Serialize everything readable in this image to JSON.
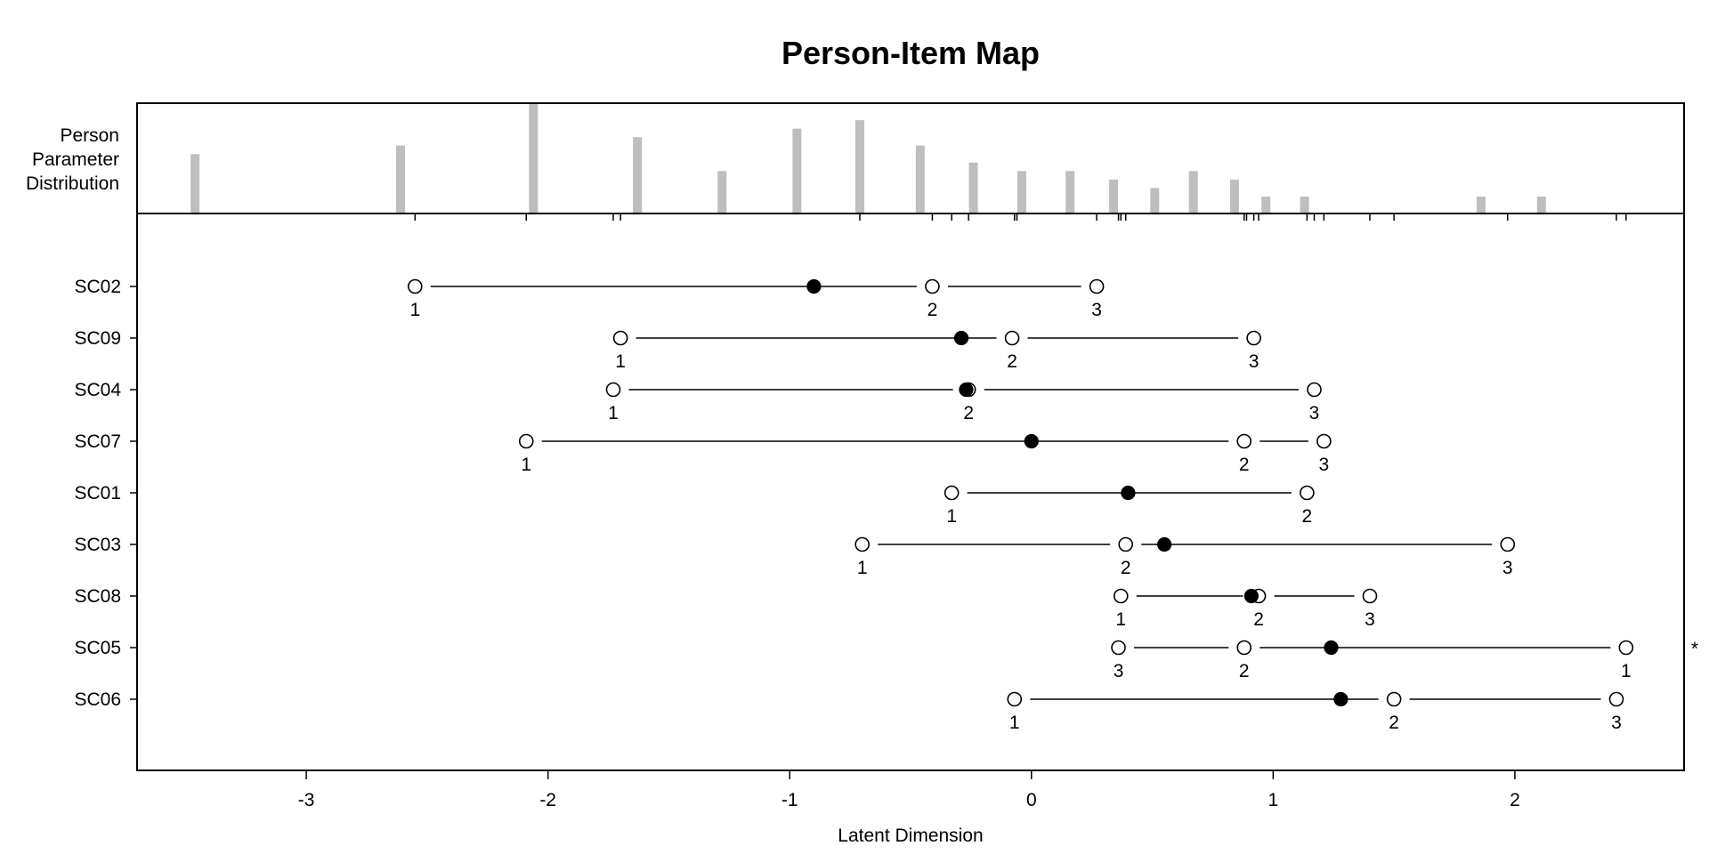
{
  "chart_data": {
    "type": "person-item map",
    "title": "Person-Item Map",
    "xlabel": "Latent Dimension",
    "xlim": [
      -3.7,
      2.7
    ],
    "x_ticks": [
      -3,
      -2,
      -1,
      0,
      1,
      2
    ],
    "x_tick_labels": [
      "-3",
      "-2",
      "-1",
      "0",
      "1",
      "2"
    ],
    "person_panel_label": [
      "Person",
      "Parameter",
      "Distribution"
    ],
    "person_distribution": [
      {
        "x": -3.46,
        "count": 7
      },
      {
        "x": -2.61,
        "count": 8
      },
      {
        "x": -2.06,
        "count": 13
      },
      {
        "x": -1.63,
        "count": 9
      },
      {
        "x": -1.28,
        "count": 5
      },
      {
        "x": -0.97,
        "count": 10
      },
      {
        "x": -0.71,
        "count": 11
      },
      {
        "x": -0.46,
        "count": 8
      },
      {
        "x": -0.24,
        "count": 6
      },
      {
        "x": -0.04,
        "count": 5
      },
      {
        "x": 0.16,
        "count": 5
      },
      {
        "x": 0.34,
        "count": 4
      },
      {
        "x": 0.51,
        "count": 3
      },
      {
        "x": 0.67,
        "count": 5
      },
      {
        "x": 0.84,
        "count": 4
      },
      {
        "x": 0.97,
        "count": 2
      },
      {
        "x": 1.13,
        "count": 2
      },
      {
        "x": 1.86,
        "count": 2
      },
      {
        "x": 2.11,
        "count": 2
      }
    ],
    "threshold_ticks": [
      -2.55,
      -2.09,
      -1.73,
      -1.7,
      -0.71,
      -0.41,
      -0.33,
      -0.26,
      -0.07,
      -0.06,
      0.27,
      0.36,
      0.37,
      0.39,
      0.88,
      0.89,
      0.92,
      0.94,
      1.14,
      1.17,
      1.21,
      1.4,
      1.5,
      1.97,
      2.42,
      2.46
    ],
    "items": [
      {
        "name": "SC02",
        "location": -0.9,
        "thresholds": [
          -2.55,
          -0.41,
          0.27
        ],
        "threshold_labels": [
          "1",
          "2",
          "3"
        ],
        "flag": ""
      },
      {
        "name": "SC09",
        "location": -0.29,
        "thresholds": [
          -1.7,
          -0.08,
          0.92
        ],
        "threshold_labels": [
          "1",
          "2",
          "3"
        ],
        "flag": ""
      },
      {
        "name": "SC04",
        "location": -0.27,
        "thresholds": [
          -1.73,
          -0.26,
          1.17
        ],
        "threshold_labels": [
          "1",
          "2",
          "3"
        ],
        "flag": ""
      },
      {
        "name": "SC07",
        "location": 0.0,
        "thresholds": [
          -2.09,
          0.88,
          1.21
        ],
        "threshold_labels": [
          "1",
          "2",
          "3"
        ],
        "flag": ""
      },
      {
        "name": "SC01",
        "location": 0.4,
        "thresholds": [
          -0.33,
          1.14
        ],
        "threshold_labels": [
          "1",
          "2"
        ],
        "flag": ""
      },
      {
        "name": "SC03",
        "location": 0.55,
        "thresholds": [
          -0.7,
          0.39,
          1.97
        ],
        "threshold_labels": [
          "1",
          "2",
          "3"
        ],
        "flag": ""
      },
      {
        "name": "SC08",
        "location": 0.91,
        "thresholds": [
          0.37,
          0.94,
          1.4
        ],
        "threshold_labels": [
          "1",
          "2",
          "3"
        ],
        "flag": ""
      },
      {
        "name": "SC05",
        "location": 1.24,
        "thresholds": [
          0.36,
          0.88,
          2.46
        ],
        "threshold_labels": [
          "3",
          "2",
          "1"
        ],
        "flag": "*"
      },
      {
        "name": "SC06",
        "location": 1.28,
        "thresholds": [
          -0.07,
          1.5,
          2.42
        ],
        "threshold_labels": [
          "1",
          "2",
          "3"
        ],
        "flag": ""
      }
    ],
    "colors": {
      "bars": "#bebebe",
      "axes": "#000000",
      "item_location": "#000000",
      "threshold_fill": "#ffffff"
    }
  }
}
